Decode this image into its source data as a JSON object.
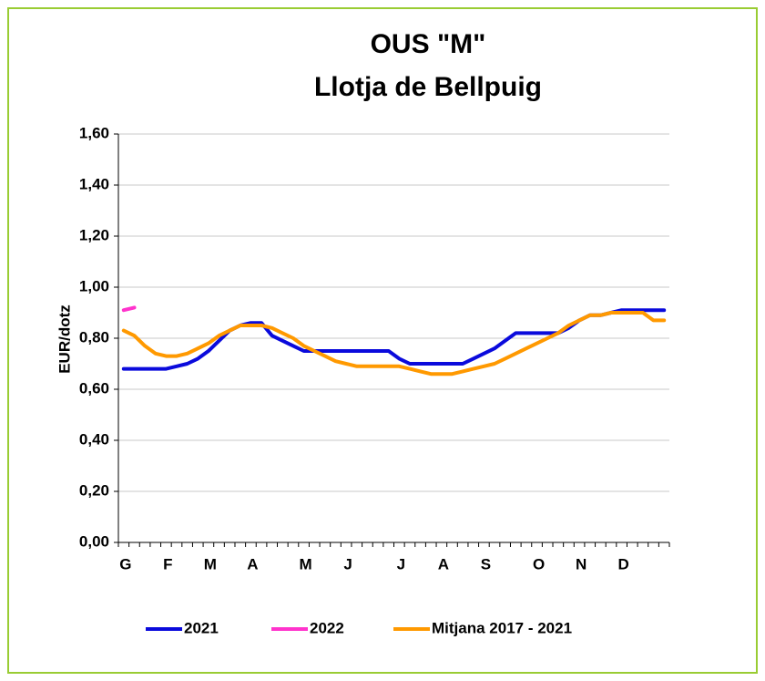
{
  "chart_data": {
    "type": "line",
    "title": "OUS \"M\"",
    "subtitle": "Llotja de Bellpuig",
    "y_label": "EUR/dotz",
    "categories": [
      "G",
      null,
      null,
      null,
      "F",
      null,
      null,
      null,
      "M",
      null,
      null,
      null,
      "A",
      null,
      null,
      null,
      null,
      "M",
      null,
      null,
      null,
      "J",
      null,
      null,
      null,
      null,
      "J",
      null,
      null,
      null,
      "A",
      null,
      null,
      null,
      "S",
      null,
      null,
      null,
      null,
      "O",
      null,
      null,
      null,
      "N",
      null,
      null,
      null,
      "D",
      null,
      null,
      null,
      null
    ],
    "series": [
      {
        "name": "2021",
        "color": "#0a0adc",
        "values": [
          0.68,
          0.68,
          0.68,
          0.68,
          0.68,
          0.69,
          0.7,
          0.72,
          0.75,
          0.79,
          0.83,
          0.85,
          0.86,
          0.86,
          0.81,
          0.79,
          0.77,
          0.75,
          0.75,
          0.75,
          0.75,
          0.75,
          0.75,
          0.75,
          0.75,
          0.75,
          0.72,
          0.7,
          0.7,
          0.7,
          0.7,
          0.7,
          0.7,
          0.72,
          0.74,
          0.76,
          0.79,
          0.82,
          0.82,
          0.82,
          0.82,
          0.82,
          0.84,
          0.87,
          0.89,
          0.89,
          0.9,
          0.91,
          0.91,
          0.91,
          0.91,
          0.91
        ]
      },
      {
        "name": "2022",
        "color": "#ff33cc",
        "values": [
          0.91,
          0.92,
          null,
          null,
          null,
          null,
          null,
          null,
          null,
          null,
          null,
          null,
          null,
          null,
          null,
          null,
          null,
          null,
          null,
          null,
          null,
          null,
          null,
          null,
          null,
          null,
          null,
          null,
          null,
          null,
          null,
          null,
          null,
          null,
          null,
          null,
          null,
          null,
          null,
          null,
          null,
          null,
          null,
          null,
          null,
          null,
          null,
          null,
          null,
          null,
          null,
          null
        ]
      },
      {
        "name": "Mitjana 2017 - 2021",
        "color": "#ff9900",
        "values": [
          0.83,
          0.81,
          0.77,
          0.74,
          0.73,
          0.73,
          0.74,
          0.76,
          0.78,
          0.81,
          0.83,
          0.85,
          0.85,
          0.85,
          0.84,
          0.82,
          0.8,
          0.77,
          0.75,
          0.73,
          0.71,
          0.7,
          0.69,
          0.69,
          0.69,
          0.69,
          0.69,
          0.68,
          0.67,
          0.66,
          0.66,
          0.66,
          0.67,
          0.68,
          0.69,
          0.7,
          0.72,
          0.74,
          0.76,
          0.78,
          0.8,
          0.82,
          0.85,
          0.87,
          0.89,
          0.89,
          0.9,
          0.9,
          0.9,
          0.9,
          0.87,
          0.87
        ]
      }
    ],
    "ylim": [
      0,
      1.6
    ],
    "yticks": [
      {
        "value": 0,
        "label": "0,00"
      },
      {
        "value": 0.2,
        "label": "0,20"
      },
      {
        "value": 0.4,
        "label": "0,40"
      },
      {
        "value": 0.6,
        "label": "0,60"
      },
      {
        "value": 0.8,
        "label": "0,80"
      },
      {
        "value": 1.0,
        "label": "1,00"
      },
      {
        "value": 1.2,
        "label": "1,20"
      },
      {
        "value": 1.4,
        "label": "1,40"
      },
      {
        "value": 1.6,
        "label": "1,60"
      }
    ],
    "grid": true,
    "legend": "bottom"
  }
}
